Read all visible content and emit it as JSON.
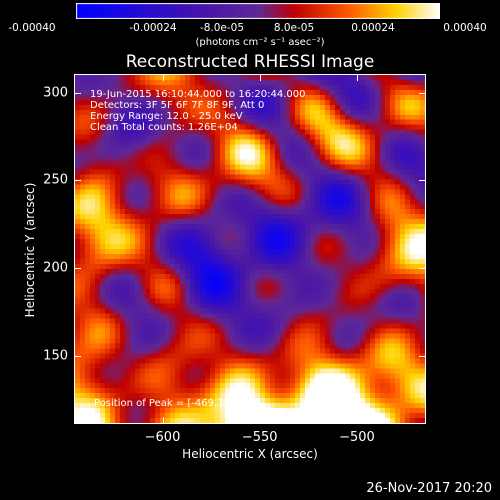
{
  "colorbar": {
    "tick_labels": [
      "-0.00040",
      "-0.00024",
      "-8.0e-05",
      "8.0e-05",
      "0.00024",
      "0.00040"
    ],
    "tick_values": [
      -0.0004,
      -0.00024,
      -8e-05,
      8e-05,
      0.00024,
      0.0004
    ],
    "range": [
      -0.0004,
      0.0004
    ],
    "units_label": "(photons cm⁻² s⁻¹ asec⁻²)"
  },
  "annotations": {
    "time_range": "19-Jun-2015 16:10:44.000 to 16:20:44.000",
    "detectors": "Detectors: 3F 5F 6F 7F 8F 9F, Att 0",
    "energy_range": "Energy Range: 12.0 - 25.0 keV",
    "clean_counts": "Clean    Total counts: 1.26E+04",
    "peak": "Position of Peak = [-469,144]"
  },
  "timestamp": "26-Nov-2017 20:20",
  "chart_data": {
    "type": "heatmap",
    "title": "Reconstructed RHESSI Image",
    "xlabel": "Heliocentric X (arcsec)",
    "ylabel": "Heliocentric Y (arcsec)",
    "xlim": [
      -645,
      -465
    ],
    "ylim": [
      112,
      310
    ],
    "x_ticks": [
      -600,
      -550,
      -500
    ],
    "y_ticks": [
      150,
      200,
      250,
      300
    ],
    "colormap": "blue-purple-red-orange-yellow-white (RHESSI hot)",
    "value_range": [
      -0.0004,
      0.0004
    ],
    "grid": false,
    "peak_position": [
      -469,
      144
    ]
  }
}
